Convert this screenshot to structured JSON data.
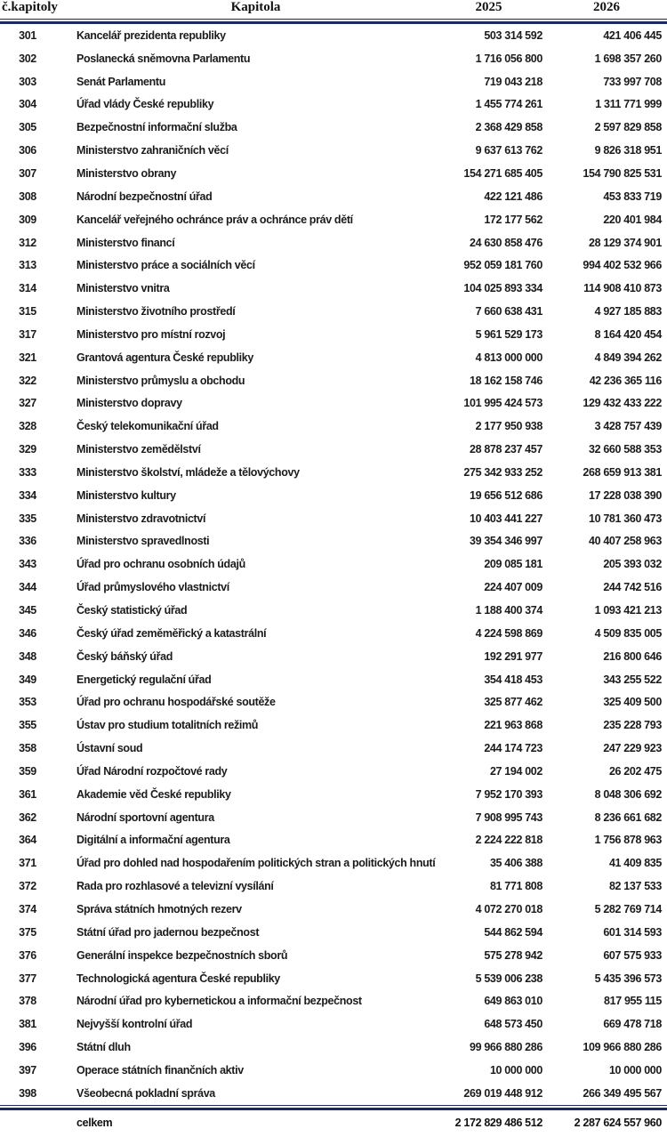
{
  "table": {
    "headers": {
      "no": "č.kapitoly",
      "name": "Kapitola",
      "y2025": "2025",
      "y2026": "2026"
    },
    "rows": [
      [
        "301",
        "Kancelář prezidenta republiky",
        "503 314 592",
        "421 406 445"
      ],
      [
        "302",
        "Poslanecká sněmovna Parlamentu",
        "1 716 056 800",
        "1 698 357 260"
      ],
      [
        "303",
        "Senát Parlamentu",
        "719 043 218",
        "733 997 708"
      ],
      [
        "304",
        "Úřad vlády České republiky",
        "1 455 774 261",
        "1 311 771 999"
      ],
      [
        "305",
        "Bezpečnostní informační služba",
        "2 368 429 858",
        "2 597 829 858"
      ],
      [
        "306",
        "Ministerstvo zahraničních věcí",
        "9 637 613 762",
        "9 826 318 951"
      ],
      [
        "307",
        "Ministerstvo obrany",
        "154 271 685 405",
        "154 790 825 531"
      ],
      [
        "308",
        "Národní bezpečnostní úřad",
        "422 121 486",
        "453 833 719"
      ],
      [
        "309",
        "Kancelář veřejného ochránce práv a ochránce práv dětí",
        "172 177 562",
        "220 401 984"
      ],
      [
        "312",
        "Ministerstvo financí",
        "24 630 858 476",
        "28 129 374 901"
      ],
      [
        "313",
        "Ministerstvo práce a sociálních věcí",
        "952 059 181 760",
        "994 402 532 966"
      ],
      [
        "314",
        "Ministerstvo vnitra",
        "104 025 893 334",
        "114 908 410 873"
      ],
      [
        "315",
        "Ministerstvo životního prostředí",
        "7 660 638 431",
        "4 927 185 883"
      ],
      [
        "317",
        "Ministerstvo pro místní rozvoj",
        "5 961 529 173",
        "8 164 420 454"
      ],
      [
        "321",
        "Grantová agentura České republiky",
        "4 813 000 000",
        "4 849 394 262"
      ],
      [
        "322",
        "Ministerstvo průmyslu a obchodu",
        "18 162 158 746",
        "42 236 365 116"
      ],
      [
        "327",
        "Ministerstvo dopravy",
        "101 995 424 573",
        "129 432 433 222"
      ],
      [
        "328",
        "Český telekomunikační úřad",
        "2 177 950 938",
        "3 428 757 439"
      ],
      [
        "329",
        "Ministerstvo zemědělství",
        "28 878 237 457",
        "32 660 588 353"
      ],
      [
        "333",
        "Ministerstvo školství, mládeže a tělovýchovy",
        "275 342 933 252",
        "268 659 913 381"
      ],
      [
        "334",
        "Ministerstvo kultury",
        "19 656 512 686",
        "17 228 038 390"
      ],
      [
        "335",
        "Ministerstvo zdravotnictví",
        "10 403 441 227",
        "10 781 360 473"
      ],
      [
        "336",
        "Ministerstvo spravedlnosti",
        "39 354 346 997",
        "40 407 258 963"
      ],
      [
        "343",
        "Úřad pro ochranu osobních údajů",
        "209 085 181",
        "205 393 032"
      ],
      [
        "344",
        "Úřad průmyslového vlastnictví",
        "224 407 009",
        "244 742 516"
      ],
      [
        "345",
        "Český statistický úřad",
        "1 188 400 374",
        "1 093 421 213"
      ],
      [
        "346",
        "Český úřad zeměměřický a katastrální",
        "4 224 598 869",
        "4 509 835 005"
      ],
      [
        "348",
        "Český báňský úřad",
        "192 291 977",
        "216 800 646"
      ],
      [
        "349",
        "Energetický regulační úřad",
        "354 418 453",
        "343 255 522"
      ],
      [
        "353",
        "Úřad pro ochranu hospodářské soutěže",
        "325 877 462",
        "325 409 500"
      ],
      [
        "355",
        "Ústav pro studium totalitních režimů",
        "221 963 868",
        "235 228 793"
      ],
      [
        "358",
        "Ústavní soud",
        "244 174 723",
        "247 229 923"
      ],
      [
        "359",
        "Úřad Národní rozpočtové rady",
        "27 194 002",
        "26 202 475"
      ],
      [
        "361",
        "Akademie věd České republiky",
        "7 952 170 393",
        "8 048 306 692"
      ],
      [
        "362",
        "Národní sportovní agentura",
        "7 908 995 743",
        "8 236 661 682"
      ],
      [
        "364",
        "Digitální a informační agentura",
        "2 224 222 818",
        "1 756 878 963"
      ],
      [
        "371",
        "Úřad pro dohled nad hospodařením politických stran a politických hnutí",
        "35 406 388",
        "41 409 835"
      ],
      [
        "372",
        "Rada pro rozhlasové a televizní vysílání",
        "81 771 808",
        "82 137 533"
      ],
      [
        "374",
        "Správa státních hmotných rezerv",
        "4 072 270 018",
        "5 282 769 714"
      ],
      [
        "375",
        "Státní úřad pro jadernou bezpečnost",
        "544 862 594",
        "601 314 593"
      ],
      [
        "376",
        "Generální inspekce bezpečnostních sborů",
        "575 278 942",
        "607 575 933"
      ],
      [
        "377",
        "Technologická agentura České republiky",
        "5 539 006 238",
        "5 435 396 573"
      ],
      [
        "378",
        "Národní úřad pro kybernetickou a informační bezpečnost",
        "649 863 010",
        "817 955 115"
      ],
      [
        "381",
        "Nejvyšší kontrolní úřad",
        "648 573 450",
        "669 478 718"
      ],
      [
        "396",
        "Státní dluh",
        "99 966 880 286",
        "109 966 880 286"
      ],
      [
        "397",
        "Operace státních finančních aktiv",
        "10 000 000",
        "10 000 000"
      ],
      [
        "398",
        "Všeobecná pokladní správa",
        "269 019 448 912",
        "266 349 495 567"
      ]
    ],
    "total": {
      "label": "celkem",
      "y2025": "2 172 829 486 512",
      "y2026": "2 287 624 557 960"
    }
  },
  "colors": {
    "rule": "#1b2a63",
    "text": "#1a1a1a"
  }
}
